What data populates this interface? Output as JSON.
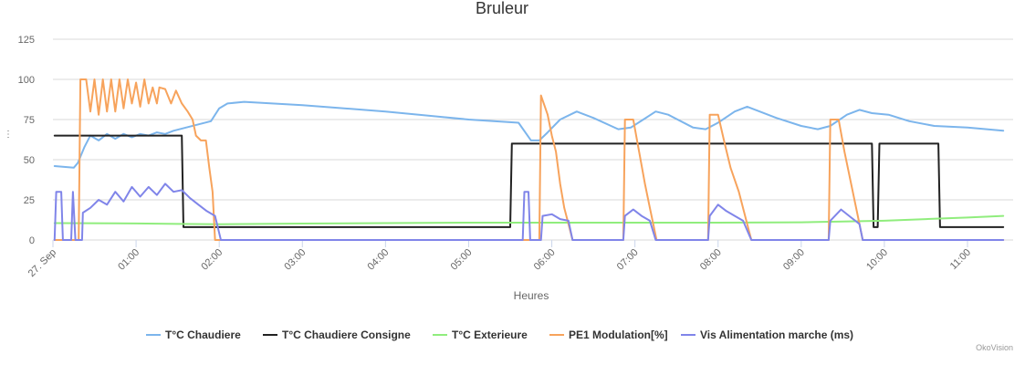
{
  "chart_data": {
    "type": "line",
    "title": "Bruleur",
    "xlabel": "Heures",
    "ylabel": "",
    "ylim": [
      0,
      125
    ],
    "yticks": [
      0,
      25,
      50,
      75,
      100,
      125
    ],
    "xlim": [
      0.0,
      11.45
    ],
    "xtick_values": [
      0,
      1,
      2,
      3,
      4,
      5,
      6,
      7,
      8,
      9,
      10,
      11
    ],
    "xtick_labels": [
      "27. Sep",
      "01:00",
      "02:00",
      "03:00",
      "04:00",
      "05:00",
      "06:00",
      "07:00",
      "08:00",
      "09:00",
      "10:00",
      "11:00"
    ],
    "x_unit": "hours since 27. Sep 00:00",
    "grid": true,
    "legend_position": "bottom",
    "series": [
      {
        "name": "T°C Chaudiere",
        "color": "#7cb5ec",
        "points": [
          [
            0.02,
            46
          ],
          [
            0.25,
            45
          ],
          [
            0.3,
            48
          ],
          [
            0.38,
            58
          ],
          [
            0.45,
            65
          ],
          [
            0.55,
            62
          ],
          [
            0.65,
            66
          ],
          [
            0.75,
            63
          ],
          [
            0.85,
            66
          ],
          [
            0.95,
            64
          ],
          [
            1.05,
            66
          ],
          [
            1.15,
            65
          ],
          [
            1.25,
            67
          ],
          [
            1.35,
            66
          ],
          [
            1.45,
            68
          ],
          [
            1.6,
            70
          ],
          [
            1.75,
            72
          ],
          [
            1.9,
            74
          ],
          [
            2.0,
            82
          ],
          [
            2.1,
            85
          ],
          [
            2.3,
            86
          ],
          [
            3.0,
            84
          ],
          [
            4.0,
            80
          ],
          [
            5.0,
            75
          ],
          [
            5.6,
            73
          ],
          [
            5.75,
            62
          ],
          [
            5.85,
            62
          ],
          [
            5.95,
            67
          ],
          [
            6.1,
            75
          ],
          [
            6.3,
            80
          ],
          [
            6.5,
            76
          ],
          [
            6.8,
            69
          ],
          [
            6.95,
            70
          ],
          [
            7.1,
            75
          ],
          [
            7.25,
            80
          ],
          [
            7.4,
            78
          ],
          [
            7.7,
            70
          ],
          [
            7.85,
            69
          ],
          [
            8.0,
            73
          ],
          [
            8.2,
            80
          ],
          [
            8.35,
            83
          ],
          [
            8.5,
            80
          ],
          [
            8.7,
            76
          ],
          [
            9.0,
            71
          ],
          [
            9.2,
            69
          ],
          [
            9.35,
            71
          ],
          [
            9.55,
            78
          ],
          [
            9.7,
            81
          ],
          [
            9.85,
            79
          ],
          [
            10.05,
            78
          ],
          [
            10.3,
            74
          ],
          [
            10.6,
            71
          ],
          [
            11.0,
            70
          ],
          [
            11.43,
            68
          ]
        ]
      },
      {
        "name": "T°C Chaudiere Consigne",
        "color": "#222222",
        "points": [
          [
            0.02,
            65
          ],
          [
            1.55,
            65
          ],
          [
            1.57,
            8
          ],
          [
            5.5,
            8
          ],
          [
            5.52,
            60
          ],
          [
            9.85,
            60
          ],
          [
            9.87,
            8
          ],
          [
            9.92,
            8
          ],
          [
            9.94,
            60
          ],
          [
            10.65,
            60
          ],
          [
            10.67,
            8
          ],
          [
            11.43,
            8
          ]
        ]
      },
      {
        "name": "T°C Exterieure",
        "color": "#90ed7d",
        "points": [
          [
            0.02,
            10.5
          ],
          [
            1.0,
            10.3
          ],
          [
            1.5,
            10
          ],
          [
            2.0,
            9.8
          ],
          [
            3.0,
            10.2
          ],
          [
            4.0,
            10.5
          ],
          [
            5.0,
            10.8
          ],
          [
            6.0,
            10.8
          ],
          [
            7.0,
            10.8
          ],
          [
            8.0,
            10.8
          ],
          [
            9.0,
            11
          ],
          [
            9.5,
            11.5
          ],
          [
            10.0,
            12
          ],
          [
            10.5,
            13
          ],
          [
            11.0,
            14
          ],
          [
            11.43,
            15
          ]
        ]
      },
      {
        "name": "PE1 Modulation[%]",
        "color": "#f7a35c",
        "points": [
          [
            0.02,
            0
          ],
          [
            0.31,
            0
          ],
          [
            0.33,
            100
          ],
          [
            0.4,
            100
          ],
          [
            0.45,
            80
          ],
          [
            0.5,
            100
          ],
          [
            0.55,
            78
          ],
          [
            0.6,
            100
          ],
          [
            0.65,
            80
          ],
          [
            0.7,
            100
          ],
          [
            0.75,
            80
          ],
          [
            0.8,
            100
          ],
          [
            0.85,
            82
          ],
          [
            0.9,
            100
          ],
          [
            0.95,
            85
          ],
          [
            1.0,
            98
          ],
          [
            1.05,
            83
          ],
          [
            1.1,
            100
          ],
          [
            1.15,
            85
          ],
          [
            1.2,
            95
          ],
          [
            1.25,
            85
          ],
          [
            1.28,
            95
          ],
          [
            1.35,
            94
          ],
          [
            1.42,
            85
          ],
          [
            1.48,
            93
          ],
          [
            1.55,
            85
          ],
          [
            1.62,
            80
          ],
          [
            1.68,
            75
          ],
          [
            1.72,
            65
          ],
          [
            1.78,
            62
          ],
          [
            1.84,
            62
          ],
          [
            1.88,
            45
          ],
          [
            1.92,
            30
          ],
          [
            1.95,
            0
          ],
          [
            5.85,
            0
          ],
          [
            5.87,
            90
          ],
          [
            5.95,
            78
          ],
          [
            6.0,
            65
          ],
          [
            6.05,
            55
          ],
          [
            6.1,
            35
          ],
          [
            6.15,
            20
          ],
          [
            6.2,
            10
          ],
          [
            6.25,
            0
          ],
          [
            6.86,
            0
          ],
          [
            6.88,
            75
          ],
          [
            6.98,
            75
          ],
          [
            7.05,
            55
          ],
          [
            7.12,
            35
          ],
          [
            7.18,
            20
          ],
          [
            7.22,
            10
          ],
          [
            7.26,
            0
          ],
          [
            7.88,
            0
          ],
          [
            7.9,
            78
          ],
          [
            8.0,
            78
          ],
          [
            8.08,
            60
          ],
          [
            8.15,
            45
          ],
          [
            8.25,
            30
          ],
          [
            8.35,
            10
          ],
          [
            8.4,
            0
          ],
          [
            9.33,
            0
          ],
          [
            9.35,
            75
          ],
          [
            9.45,
            75
          ],
          [
            9.52,
            55
          ],
          [
            9.6,
            35
          ],
          [
            9.68,
            15
          ],
          [
            9.72,
            5
          ],
          [
            9.74,
            0
          ],
          [
            11.43,
            0
          ]
        ]
      },
      {
        "name": "Vis Alimentation marche (ms)",
        "color": "#8085e9",
        "points": [
          [
            0.02,
            0
          ],
          [
            0.04,
            30
          ],
          [
            0.1,
            30
          ],
          [
            0.12,
            0
          ],
          [
            0.22,
            0
          ],
          [
            0.24,
            30
          ],
          [
            0.27,
            0
          ],
          [
            0.35,
            0
          ],
          [
            0.36,
            17
          ],
          [
            0.45,
            20
          ],
          [
            0.55,
            25
          ],
          [
            0.65,
            22
          ],
          [
            0.75,
            30
          ],
          [
            0.85,
            24
          ],
          [
            0.95,
            33
          ],
          [
            1.05,
            27
          ],
          [
            1.15,
            33
          ],
          [
            1.25,
            28
          ],
          [
            1.35,
            35
          ],
          [
            1.45,
            30
          ],
          [
            1.55,
            31
          ],
          [
            1.65,
            26
          ],
          [
            1.75,
            22
          ],
          [
            1.85,
            18
          ],
          [
            1.95,
            15
          ],
          [
            2.02,
            0
          ],
          [
            5.65,
            0
          ],
          [
            5.67,
            30
          ],
          [
            5.72,
            30
          ],
          [
            5.74,
            0
          ],
          [
            5.87,
            0
          ],
          [
            5.89,
            15
          ],
          [
            6.0,
            16
          ],
          [
            6.1,
            13
          ],
          [
            6.2,
            12
          ],
          [
            6.25,
            0
          ],
          [
            6.86,
            0
          ],
          [
            6.88,
            15
          ],
          [
            6.98,
            19
          ],
          [
            7.08,
            15
          ],
          [
            7.18,
            12
          ],
          [
            7.25,
            0
          ],
          [
            7.88,
            0
          ],
          [
            7.9,
            15
          ],
          [
            8.0,
            22
          ],
          [
            8.1,
            18
          ],
          [
            8.2,
            15
          ],
          [
            8.3,
            12
          ],
          [
            8.4,
            0
          ],
          [
            9.33,
            0
          ],
          [
            9.35,
            12
          ],
          [
            9.48,
            19
          ],
          [
            9.6,
            14
          ],
          [
            9.7,
            10
          ],
          [
            9.74,
            0
          ],
          [
            11.43,
            0
          ]
        ]
      }
    ]
  },
  "credit": "OkoVision",
  "icons": {
    "menu": "context-menu-icon"
  }
}
